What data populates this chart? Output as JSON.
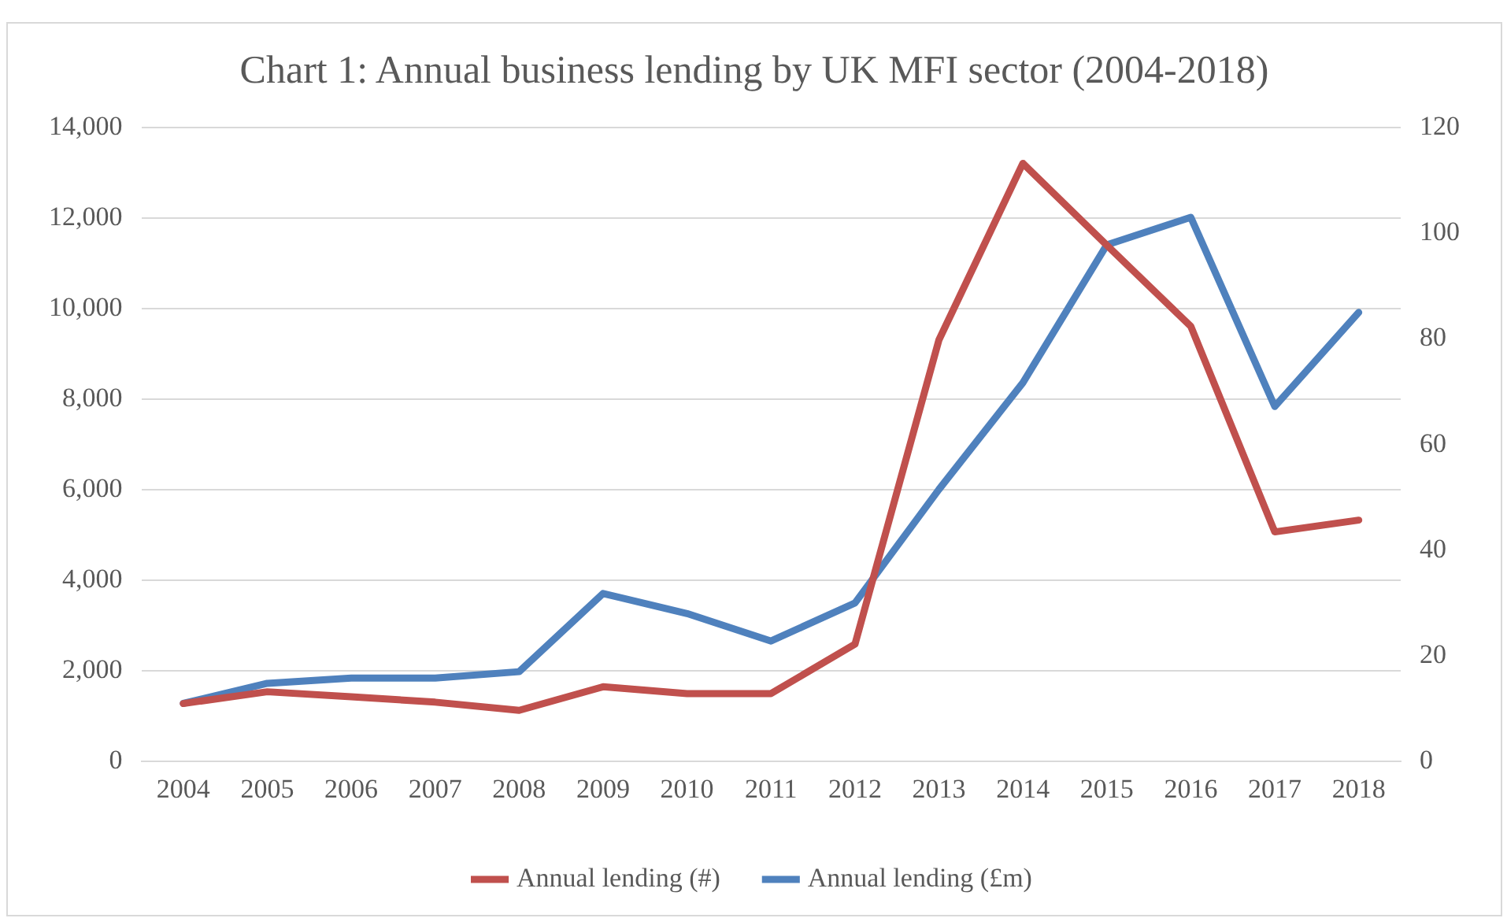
{
  "chart_data": {
    "type": "line",
    "title": "Chart 1: Annual business lending by UK MFI sector (2004-2018)",
    "categories": [
      "2004",
      "2005",
      "2006",
      "2007",
      "2008",
      "2009",
      "2010",
      "2011",
      "2012",
      "2013",
      "2014",
      "2015",
      "2016",
      "2017",
      "2018"
    ],
    "series": [
      {
        "name": "Annual lending (#)",
        "color": "#c0504d",
        "values": [
          1280,
          1540,
          1430,
          1310,
          1130,
          1650,
          1500,
          1500,
          2590,
          9310,
          13210,
          11400,
          9610,
          5070,
          5330
        ]
      },
      {
        "name": "Annual lending (£m)",
        "color": "#4f81bd",
        "axis": "y2",
        "values": [
          11,
          14.8,
          15.8,
          15.8,
          17,
          31.8,
          28,
          22.8,
          30,
          51.5,
          71.7,
          97.8,
          103,
          67.2,
          85
        ]
      }
    ],
    "ylim": [
      0,
      14000
    ],
    "yticks": [
      0,
      {
        "value": 2000,
        "label": "2,000"
      },
      {
        "value": 4000,
        "label": "4,000"
      },
      {
        "value": 6000,
        "label": "6,000"
      },
      {
        "value": 8000,
        "label": "8,000"
      },
      {
        "value": 10000,
        "label": "10,000"
      },
      {
        "value": 12000,
        "label": "12,000"
      },
      {
        "value": 14000,
        "label": "14,000"
      }
    ],
    "y2lim": [
      0,
      120
    ],
    "y2ticks": [
      0,
      20,
      40,
      60,
      80,
      100,
      120
    ],
    "grid": "y",
    "legend": "bottom",
    "marker": "none",
    "line_style": "solid"
  }
}
